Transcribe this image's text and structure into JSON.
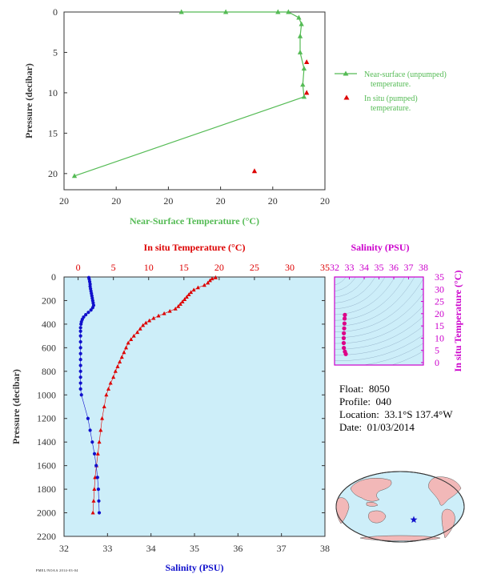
{
  "chart_data": [
    {
      "type": "line",
      "xlabel": "Near-Surface Temperature (°C)",
      "ylabel": "Pressure (decibar)",
      "x_tick_labels": [
        "20",
        "20",
        "20",
        "20",
        "20",
        "20"
      ],
      "y_ticks": [
        0,
        5,
        10,
        15,
        20
      ],
      "ylim": [
        0,
        22
      ],
      "grid": false,
      "legend_position": "right",
      "series": [
        {
          "name": "Near-surface (unpumped) temperature.",
          "color": "#55bb55",
          "marker": "triangle",
          "points": [
            {
              "t": 0.04,
              "p": 20.3
            },
            {
              "t": 0.92,
              "p": 10.5
            },
            {
              "t": 0.915,
              "p": 9.0
            },
            {
              "t": 0.92,
              "p": 7.0
            },
            {
              "t": 0.905,
              "p": 5.0
            },
            {
              "t": 0.905,
              "p": 3.0
            },
            {
              "t": 0.91,
              "p": 1.5
            },
            {
              "t": 0.9,
              "p": 0.7
            },
            {
              "t": 0.86,
              "p": 0.0
            },
            {
              "t": 0.82,
              "p": 0.0
            },
            {
              "t": 0.62,
              "p": 0.0
            },
            {
              "t": 0.45,
              "p": 0.0
            }
          ]
        },
        {
          "name": "In situ (pumped) temperature.",
          "color": "#dd0000",
          "marker": "triangle",
          "points": [
            {
              "t": 0.93,
              "p": 6.2
            },
            {
              "t": 0.93,
              "p": 10.0
            },
            {
              "t": 0.73,
              "p": 19.7
            }
          ]
        }
      ]
    },
    {
      "type": "scatter",
      "top_xlabel": "In situ Temperature (°C)",
      "bottom_xlabel": "Salinity (PSU)",
      "ylabel": "Pressure (decibar)",
      "temperature_ticks": [
        0,
        5,
        10,
        15,
        20,
        25,
        30,
        35
      ],
      "temperature_range": [
        -2,
        35
      ],
      "salinity_ticks": [
        32,
        33,
        34,
        35,
        36,
        37,
        38
      ],
      "salinity_range": [
        32,
        38
      ],
      "pressure_ticks": [
        0,
        200,
        400,
        600,
        800,
        1000,
        1200,
        1400,
        1600,
        1800,
        2000,
        2200
      ],
      "pressure_range": [
        0,
        2200
      ],
      "series": [
        {
          "name": "In situ Temperature",
          "color": "#dd0000",
          "marker": "triangle",
          "points": [
            [
              19.5,
              5
            ],
            [
              19.0,
              15
            ],
            [
              18.7,
              30
            ],
            [
              18.4,
              50
            ],
            [
              17.9,
              70
            ],
            [
              17.0,
              90
            ],
            [
              16.4,
              110
            ],
            [
              16.0,
              130
            ],
            [
              15.7,
              150
            ],
            [
              15.4,
              170
            ],
            [
              15.1,
              190
            ],
            [
              14.8,
              210
            ],
            [
              14.5,
              230
            ],
            [
              14.2,
              250
            ],
            [
              13.8,
              270
            ],
            [
              13.0,
              290
            ],
            [
              12.2,
              310
            ],
            [
              11.4,
              330
            ],
            [
              10.7,
              350
            ],
            [
              10.1,
              370
            ],
            [
              9.6,
              390
            ],
            [
              9.2,
              410
            ],
            [
              8.8,
              440
            ],
            [
              8.4,
              470
            ],
            [
              7.9,
              500
            ],
            [
              7.5,
              530
            ],
            [
              7.1,
              560
            ],
            [
              6.8,
              600
            ],
            [
              6.5,
              640
            ],
            [
              6.2,
              680
            ],
            [
              5.9,
              720
            ],
            [
              5.6,
              760
            ],
            [
              5.3,
              800
            ],
            [
              5.0,
              850
            ],
            [
              4.6,
              900
            ],
            [
              4.3,
              950
            ],
            [
              4.0,
              1000
            ],
            [
              3.7,
              1100
            ],
            [
              3.4,
              1200
            ],
            [
              3.2,
              1300
            ],
            [
              3.0,
              1400
            ],
            [
              2.8,
              1500
            ],
            [
              2.6,
              1600
            ],
            [
              2.4,
              1700
            ],
            [
              2.3,
              1800
            ],
            [
              2.2,
              1900
            ],
            [
              2.1,
              2000
            ]
          ]
        },
        {
          "name": "Salinity",
          "color": "#1010cc",
          "marker": "circle",
          "points": [
            [
              32.57,
              5
            ],
            [
              32.58,
              20
            ],
            [
              32.59,
              40
            ],
            [
              32.6,
              60
            ],
            [
              32.6,
              80
            ],
            [
              32.61,
              100
            ],
            [
              32.62,
              120
            ],
            [
              32.63,
              140
            ],
            [
              32.64,
              160
            ],
            [
              32.65,
              180
            ],
            [
              32.66,
              200
            ],
            [
              32.67,
              220
            ],
            [
              32.68,
              240
            ],
            [
              32.66,
              260
            ],
            [
              32.62,
              280
            ],
            [
              32.56,
              300
            ],
            [
              32.5,
              320
            ],
            [
              32.45,
              340
            ],
            [
              32.42,
              360
            ],
            [
              32.4,
              380
            ],
            [
              32.39,
              400
            ],
            [
              32.38,
              430
            ],
            [
              32.38,
              460
            ],
            [
              32.38,
              500
            ],
            [
              32.38,
              550
            ],
            [
              32.38,
              600
            ],
            [
              32.38,
              650
            ],
            [
              32.38,
              700
            ],
            [
              32.38,
              750
            ],
            [
              32.38,
              800
            ],
            [
              32.38,
              850
            ],
            [
              32.38,
              900
            ],
            [
              32.38,
              950
            ],
            [
              32.4,
              1000
            ],
            [
              32.55,
              1200
            ],
            [
              32.6,
              1300
            ],
            [
              32.65,
              1400
            ],
            [
              32.7,
              1500
            ],
            [
              32.74,
              1600
            ],
            [
              32.77,
              1700
            ],
            [
              32.79,
              1800
            ],
            [
              32.8,
              1900
            ],
            [
              32.81,
              2000
            ]
          ]
        }
      ]
    },
    {
      "type": "scatter",
      "top_xlabel": "Salinity (PSU)",
      "right_ylabel": "In situ Temperature (°C)",
      "x_ticks": [
        32,
        33,
        34,
        35,
        36,
        37,
        38
      ],
      "xlim": [
        32,
        38
      ],
      "y_ticks": [
        0,
        5,
        10,
        15,
        20,
        25,
        30,
        35
      ],
      "ylim": [
        -1,
        35
      ],
      "series": [
        {
          "name": "T-S",
          "color": "#dd0088",
          "marker": "circle",
          "points": [
            [
              32.76,
              3.5
            ],
            [
              32.7,
              4.5
            ],
            [
              32.63,
              6
            ],
            [
              32.62,
              8
            ],
            [
              32.62,
              10
            ],
            [
              32.63,
              12
            ],
            [
              32.65,
              14
            ],
            [
              32.67,
              16
            ],
            [
              32.68,
              18
            ],
            [
              32.7,
              19.5
            ]
          ]
        }
      ]
    }
  ],
  "float_info": {
    "float_label": "Float:",
    "float_value": "8050",
    "profile_label": "Profile:",
    "profile_value": "040",
    "location_label": "Location:",
    "location_value": "33.1°S  137.4°W",
    "date_label": "Date:",
    "date_value": "01/03/2014"
  },
  "colors": {
    "green": "#55bb55",
    "red": "#dd0000",
    "blue": "#1010cc",
    "magenta": "#cc00cc",
    "axis_text": "#333333",
    "panel_bg": "#cdeef9",
    "land": "#f2b8b8"
  },
  "footer_text": "PMEL/NOAA 2014-03-04",
  "map_marker_icon": "star-icon"
}
